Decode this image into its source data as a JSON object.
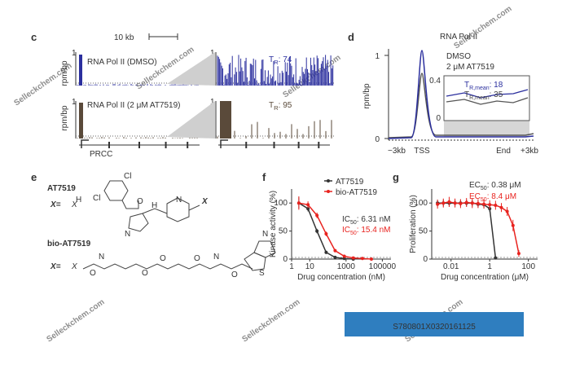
{
  "watermark": "Selleckchem.com",
  "badge": "S780801X0320161125",
  "panel_c": {
    "label": "c",
    "scale_bar": "10 kb",
    "y_label": "rpm/bp",
    "y_max": 1,
    "track_labels": [
      "RNA Pol II (DMSO)",
      "RNA Pol II (2 μM AT7519)"
    ],
    "tr": [
      {
        "symbol": "T",
        "sub": "R",
        "value": ": 74"
      },
      {
        "symbol": "T",
        "sub": "R",
        "value": ": 95"
      }
    ],
    "gene": "PRCC"
  },
  "panel_d": {
    "label": "d",
    "title": "RNA Pol II",
    "y_label": "rpm/bp",
    "yticks": [
      0,
      1
    ],
    "legend": [
      {
        "name": "DMSO",
        "color": "#2b2f9e"
      },
      {
        "name": "2 μM AT7519",
        "color": "#444444"
      }
    ],
    "inset_yticks": [
      0,
      0.4
    ],
    "inset": [
      {
        "symbol": "T",
        "sub": "R,mean",
        "value": ": 18",
        "color": "#2b2f9e"
      },
      {
        "symbol": "T",
        "sub": "R,mean",
        "value": ": 35",
        "color": "#444444"
      }
    ],
    "x_labels": [
      "−3kb",
      "TSS",
      "End",
      "+3kb"
    ]
  },
  "panel_e": {
    "label": "e",
    "compounds": [
      "AT7519",
      "bio-AT7519"
    ],
    "x_eq": "X=",
    "x_symbol": "X",
    "atoms_top": [
      "Cl",
      "Cl",
      "O",
      "H",
      "N",
      "H",
      "N",
      "N",
      "N",
      "H",
      "N",
      "H"
    ],
    "atoms_bottom": [
      "O",
      "H",
      "N",
      "O",
      "O",
      "O",
      "H",
      "N",
      "O",
      "H",
      "N",
      "H",
      "N",
      "S",
      "O"
    ]
  },
  "chart_data": [
    {
      "type": "scatter",
      "panel": "f",
      "y_label": "Kinase activity (%)",
      "x_label": "Drug concentration (nM)",
      "log_x": true,
      "xlim": [
        1,
        300000
      ],
      "ylim": [
        0,
        125
      ],
      "xticks": [
        1,
        10,
        1000,
        100000
      ],
      "yticks": [
        0,
        50,
        100
      ],
      "series": [
        {
          "name": "AT7519",
          "color": "#333333",
          "x": [
            2.5,
            8,
            25,
            80,
            250,
            800,
            2500
          ],
          "values": [
            100,
            90,
            50,
            12,
            3,
            1,
            0
          ],
          "errors": [
            10,
            5,
            4,
            3,
            2,
            1,
            1
          ]
        },
        {
          "name": "bio-AT7519",
          "color": "#e8231f",
          "x": [
            2.5,
            8,
            25,
            80,
            250,
            800,
            2500,
            8000,
            25000
          ],
          "values": [
            100,
            97,
            78,
            45,
            15,
            5,
            2,
            1,
            0
          ],
          "errors": [
            12,
            6,
            5,
            4,
            3,
            2,
            1,
            1,
            1
          ]
        }
      ],
      "annotations": [
        {
          "text": "IC",
          "sub": "50",
          "rest": ": 6.31 nM",
          "color": "#333333"
        },
        {
          "text": "IC",
          "sub": "50",
          "rest": ": 15.4 nM",
          "color": "#e8231f"
        }
      ]
    },
    {
      "type": "scatter",
      "panel": "g",
      "y_label": "Proliferation (%)",
      "x_label": "Drug concentration (μM)",
      "log_x": true,
      "xlim": [
        0.001,
        300
      ],
      "ylim": [
        0,
        125
      ],
      "xticks": [
        0.01,
        1,
        100
      ],
      "yticks": [
        0,
        50,
        100
      ],
      "series": [
        {
          "color": "#333333",
          "x": [
            0.002,
            0.004,
            0.008,
            0.016,
            0.031,
            0.063,
            0.125,
            0.25,
            0.5,
            1,
            2
          ],
          "values": [
            100,
            100,
            100,
            100,
            100,
            100,
            100,
            98,
            97,
            90,
            2
          ],
          "errors": [
            6,
            6,
            6,
            6,
            6,
            6,
            6,
            6,
            6,
            6,
            2
          ]
        },
        {
          "color": "#e8231f",
          "x": [
            0.002,
            0.004,
            0.008,
            0.016,
            0.031,
            0.063,
            0.125,
            0.25,
            0.5,
            1,
            2,
            4,
            8,
            16,
            32
          ],
          "values": [
            98,
            100,
            102,
            100,
            99,
            101,
            100,
            99,
            98,
            97,
            96,
            92,
            85,
            60,
            10
          ],
          "errors": [
            8,
            8,
            9,
            8,
            8,
            8,
            9,
            8,
            8,
            8,
            8,
            8,
            8,
            10,
            6
          ]
        }
      ],
      "annotations": [
        {
          "text": "EC",
          "sub": "50",
          "rest": ": 0.38 μM",
          "color": "#333333"
        },
        {
          "text": "EC",
          "sub": "50",
          "rest": ": 8.4 μM",
          "color": "#e8231f"
        }
      ]
    }
  ]
}
